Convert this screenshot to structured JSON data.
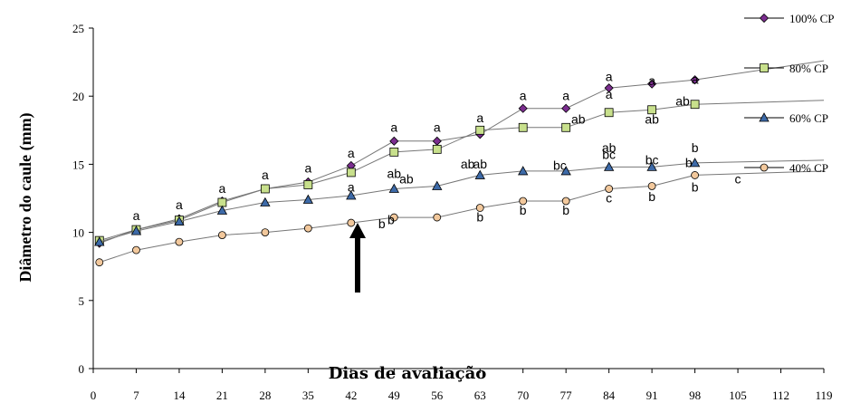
{
  "chart_data": {
    "type": "line",
    "title": "",
    "xlabel": "Dias de avaliação",
    "ylabel": "Diâmetro do caule (mm)",
    "xlim": [
      0,
      119
    ],
    "ylim": [
      0,
      25
    ],
    "xticks": [
      "0",
      "7",
      "14",
      "21",
      "28",
      "35",
      "42",
      "49",
      "56",
      "63",
      "70",
      "77",
      "84",
      "91",
      "98",
      "105",
      "112",
      "119"
    ],
    "yticks": [
      "0",
      "5",
      "10",
      "15",
      "20",
      "25"
    ],
    "legend_position": "right",
    "grid": false,
    "annotation": "arrow pointing at day 42",
    "series": [
      {
        "name": "100% CP",
        "marker": "diamond",
        "color": "#7b2d8f",
        "x": [
          1,
          7,
          14,
          21,
          28,
          35,
          42,
          49,
          56,
          63,
          70,
          77,
          84,
          91,
          98
        ],
        "values": [
          9.2,
          10.2,
          11.0,
          12.3,
          13.2,
          13.7,
          14.9,
          16.7,
          16.7,
          17.2,
          19.1,
          19.1,
          20.6,
          20.9,
          21.2
        ],
        "trend_end": [
          119,
          22.6
        ]
      },
      {
        "name": "80% CP",
        "marker": "square",
        "color": "#c8e08c",
        "x": [
          1,
          7,
          14,
          21,
          28,
          35,
          42,
          49,
          56,
          63,
          70,
          77,
          84,
          91,
          98
        ],
        "values": [
          9.4,
          10.2,
          10.9,
          12.2,
          13.2,
          13.5,
          14.4,
          15.9,
          16.1,
          17.5,
          17.7,
          17.7,
          18.8,
          19.0,
          19.4
        ],
        "trend_end": [
          119,
          19.7
        ]
      },
      {
        "name": "60% CP",
        "marker": "triangle",
        "color": "#3d6aa8",
        "x": [
          1,
          7,
          14,
          21,
          28,
          35,
          42,
          49,
          56,
          63,
          70,
          77,
          84,
          91,
          98
        ],
        "values": [
          9.3,
          10.1,
          10.8,
          11.6,
          12.2,
          12.4,
          12.7,
          13.2,
          13.4,
          14.2,
          14.5,
          14.5,
          14.8,
          14.8,
          15.1
        ],
        "trend_end": [
          119,
          15.3
        ]
      },
      {
        "name": "40% CP",
        "marker": "circle",
        "color": "#f2c89c",
        "x": [
          1,
          7,
          14,
          21,
          28,
          35,
          42,
          49,
          56,
          63,
          70,
          77,
          84,
          91,
          98
        ],
        "values": [
          7.8,
          8.7,
          9.3,
          9.8,
          10.0,
          10.3,
          10.7,
          11.1,
          11.1,
          11.8,
          12.3,
          12.3,
          13.2,
          13.4,
          14.2
        ],
        "trend_end": [
          119,
          14.5
        ]
      }
    ],
    "annotations": [
      {
        "text": "a",
        "x": 7,
        "y": 10.9
      },
      {
        "text": "a",
        "x": 14,
        "y": 11.7
      },
      {
        "text": "a",
        "x": 21,
        "y": 12.9
      },
      {
        "text": "a",
        "x": 28,
        "y": 13.9
      },
      {
        "text": "a",
        "x": 35,
        "y": 14.4
      },
      {
        "text": "a",
        "x": 42,
        "y": 15.5
      },
      {
        "text": "a",
        "x": 42,
        "y": 13.0
      },
      {
        "text": "a",
        "x": 49,
        "y": 17.4
      },
      {
        "text": "a",
        "x": 56,
        "y": 17.4
      },
      {
        "text": "a",
        "x": 63,
        "y": 18.1
      },
      {
        "text": "a",
        "x": 70,
        "y": 19.7
      },
      {
        "text": "a",
        "x": 77,
        "y": 19.7
      },
      {
        "text": "a",
        "x": 84,
        "y": 21.1
      },
      {
        "text": "a",
        "x": 84,
        "y": 19.8
      },
      {
        "text": "a",
        "x": 91,
        "y": 20.8
      },
      {
        "text": "a",
        "x": 98,
        "y": 20.9
      },
      {
        "text": "ab",
        "x": 49,
        "y": 14.0
      },
      {
        "text": "ab",
        "x": 51,
        "y": 13.6
      },
      {
        "text": "ab",
        "x": 63,
        "y": 14.7
      },
      {
        "text": "ab",
        "x": 61,
        "y": 14.7
      },
      {
        "text": "ab",
        "x": 79,
        "y": 18.0
      },
      {
        "text": "ab",
        "x": 84,
        "y": 15.9
      },
      {
        "text": "ab",
        "x": 91,
        "y": 18.0
      },
      {
        "text": "ab",
        "x": 96,
        "y": 19.3
      },
      {
        "text": "bc",
        "x": 76,
        "y": 14.6
      },
      {
        "text": "bc",
        "x": 84,
        "y": 15.4
      },
      {
        "text": "bc",
        "x": 91,
        "y": 15.0
      },
      {
        "text": "b",
        "x": 98,
        "y": 15.9
      },
      {
        "text": "b",
        "x": 97,
        "y": 14.8
      },
      {
        "text": "b",
        "x": 47,
        "y": 10.3
      },
      {
        "text": "b",
        "x": 48.5,
        "y": 10.6
      },
      {
        "text": "b",
        "x": 63,
        "y": 10.8
      },
      {
        "text": "b",
        "x": 70,
        "y": 11.3
      },
      {
        "text": "b",
        "x": 77,
        "y": 11.3
      },
      {
        "text": "c",
        "x": 84,
        "y": 12.2
      },
      {
        "text": "b",
        "x": 91,
        "y": 12.3
      },
      {
        "text": "b",
        "x": 98,
        "y": 13.0
      },
      {
        "text": "c",
        "x": 105,
        "y": 13.6
      }
    ]
  }
}
